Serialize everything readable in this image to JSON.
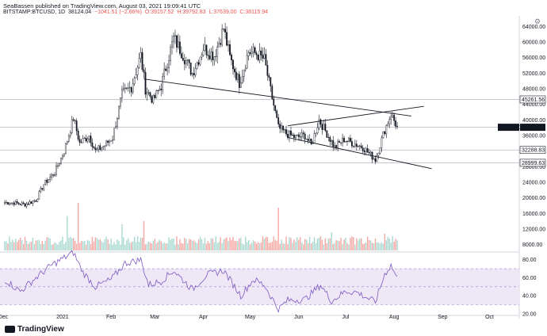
{
  "header": {
    "line1": "SeaBassen published on TradingView.com, August 03, 2021 19:09:41 UTC",
    "symbol": "BITSTAMP:BTCUSD, 1D",
    "last": "38124.04",
    "change": "−1041.51 (−2.66%)",
    "open": "O:39157.52",
    "high": "H:39792.83",
    "low": "L:37639.00",
    "close": "C:38115.94"
  },
  "logo_text": "TradingView",
  "gear_icon": "gear-icon",
  "colors": {
    "candle_up": "#131722",
    "candle_down": "#131722",
    "volume_up": "#a8d8d0",
    "volume_down": "#f4a7a3",
    "rsi_line": "#7e57c2",
    "rsi_band": "#ede7f6",
    "price_label_bg": "#131722"
  },
  "chart_data": [
    {
      "type": "candlestick",
      "y_axis_label": "USD",
      "ylim": [
        0,
        64000
      ],
      "y_ticks": [
        8000,
        12000,
        16000,
        20000,
        24000,
        28000,
        32000,
        36000,
        40000,
        44000,
        48000,
        52000,
        56000,
        60000
      ],
      "y_tick_labels": [
        "8000.00",
        "12000.00",
        "16000.00",
        "20000.00",
        "24000.00",
        "28000.00",
        "32000.00",
        "36000.00",
        "40000.00",
        "44000.00",
        "48000.00",
        "52000.00",
        "56000.00",
        "60000.00"
      ],
      "top_tick_label": "64000.00",
      "x_labels": [
        "Dec",
        "2021",
        "Feb",
        "Mar",
        "Apr",
        "May",
        "Jun",
        "Jul",
        "Aug",
        "Sep",
        "Oct"
      ],
      "price_labels": [
        {
          "value": 45261.56,
          "text": "45261.56",
          "style": "light"
        },
        {
          "value": 38115.94,
          "text": "38115.94",
          "style": "dark",
          "prefix": "BTCUSD"
        },
        {
          "value": 32288.83,
          "text": "32288.83",
          "style": "light"
        },
        {
          "value": 28999.63,
          "text": "28999.63",
          "style": "light"
        }
      ],
      "horizontal_levels": [
        45261.56,
        38115.94,
        32288.83,
        28999.63
      ],
      "close_path": [
        [
          "2020-11-25",
          18800
        ],
        [
          "2020-12-01",
          18700
        ],
        [
          "2020-12-08",
          18300
        ],
        [
          "2020-12-15",
          19400
        ],
        [
          "2020-12-20",
          23500
        ],
        [
          "2020-12-27",
          26500
        ],
        [
          "2021-01-02",
          32000
        ],
        [
          "2021-01-08",
          40500
        ],
        [
          "2021-01-12",
          34000
        ],
        [
          "2021-01-18",
          36000
        ],
        [
          "2021-01-22",
          32000
        ],
        [
          "2021-01-28",
          33500
        ],
        [
          "2021-02-02",
          35500
        ],
        [
          "2021-02-08",
          46500
        ],
        [
          "2021-02-14",
          48500
        ],
        [
          "2021-02-20",
          56500
        ],
        [
          "2021-02-23",
          48000
        ],
        [
          "2021-02-28",
          45000
        ],
        [
          "2021-03-05",
          48800
        ],
        [
          "2021-03-13",
          61000
        ],
        [
          "2021-03-18",
          57500
        ],
        [
          "2021-03-25",
          52000
        ],
        [
          "2021-04-01",
          58500
        ],
        [
          "2021-04-08",
          56500
        ],
        [
          "2021-04-14",
          63500
        ],
        [
          "2021-04-18",
          56000
        ],
        [
          "2021-04-24",
          49500
        ],
        [
          "2021-04-30",
          57500
        ],
        [
          "2021-05-05",
          57000
        ],
        [
          "2021-05-10",
          55500
        ],
        [
          "2021-05-13",
          49500
        ],
        [
          "2021-05-19",
          38000
        ],
        [
          "2021-05-24",
          36500
        ],
        [
          "2021-05-30",
          35500
        ],
        [
          "2021-06-05",
          36000
        ],
        [
          "2021-06-09",
          33500
        ],
        [
          "2021-06-14",
          40000
        ],
        [
          "2021-06-20",
          35800
        ],
        [
          "2021-06-24",
          33000
        ],
        [
          "2021-06-30",
          35000
        ],
        [
          "2021-07-06",
          34000
        ],
        [
          "2021-07-12",
          33000
        ],
        [
          "2021-07-20",
          29800
        ],
        [
          "2021-07-26",
          37500
        ],
        [
          "2021-07-30",
          41500
        ],
        [
          "2021-08-03",
          38115.94
        ]
      ],
      "trendlines": [
        {
          "from": [
            "2021-02-22",
            50500
          ],
          "to": [
            "2021-08-12",
            41000
          ]
        },
        {
          "from": [
            "2021-05-25",
            38500
          ],
          "to": [
            "2021-08-20",
            43500
          ]
        },
        {
          "from": [
            "2021-05-25",
            35500
          ],
          "to": [
            "2021-08-25",
            27500
          ]
        }
      ]
    },
    {
      "type": "bar",
      "name": "volume",
      "y_ticks": [
        8000,
        12000,
        16000,
        20000,
        24000
      ],
      "peaks": [
        [
          "2021-01-11",
          1.0
        ],
        [
          "2021-01-04",
          0.72
        ],
        [
          "2021-02-08",
          0.55
        ],
        [
          "2021-02-22",
          0.62
        ],
        [
          "2021-05-19",
          0.9
        ],
        [
          "2021-06-22",
          0.38
        ],
        [
          "2021-07-26",
          0.35
        ]
      ]
    },
    {
      "type": "line",
      "name": "rsi",
      "ylim": [
        20,
        90
      ],
      "y_ticks": [
        20,
        40,
        60,
        80
      ],
      "y_tick_labels": [
        "20.00",
        "40.00",
        "60.00",
        "80.00"
      ],
      "band": [
        30,
        70
      ],
      "values": [
        [
          "2020-11-25",
          58
        ],
        [
          "2020-12-05",
          45
        ],
        [
          "2020-12-15",
          60
        ],
        [
          "2020-12-25",
          74
        ],
        [
          "2021-01-08",
          88
        ],
        [
          "2021-01-14",
          66
        ],
        [
          "2021-01-22",
          50
        ],
        [
          "2021-02-01",
          58
        ],
        [
          "2021-02-10",
          76
        ],
        [
          "2021-02-20",
          80
        ],
        [
          "2021-02-25",
          52
        ],
        [
          "2021-03-05",
          56
        ],
        [
          "2021-03-13",
          68
        ],
        [
          "2021-03-25",
          47
        ],
        [
          "2021-04-03",
          63
        ],
        [
          "2021-04-14",
          68
        ],
        [
          "2021-04-25",
          40
        ],
        [
          "2021-05-03",
          58
        ],
        [
          "2021-05-10",
          52
        ],
        [
          "2021-05-19",
          25
        ],
        [
          "2021-05-25",
          35
        ],
        [
          "2021-06-05",
          36
        ],
        [
          "2021-06-15",
          52
        ],
        [
          "2021-06-22",
          34
        ],
        [
          "2021-07-01",
          45
        ],
        [
          "2021-07-08",
          44
        ],
        [
          "2021-07-20",
          33
        ],
        [
          "2021-07-26",
          64
        ],
        [
          "2021-07-30",
          74
        ],
        [
          "2021-08-03",
          59
        ]
      ]
    }
  ]
}
